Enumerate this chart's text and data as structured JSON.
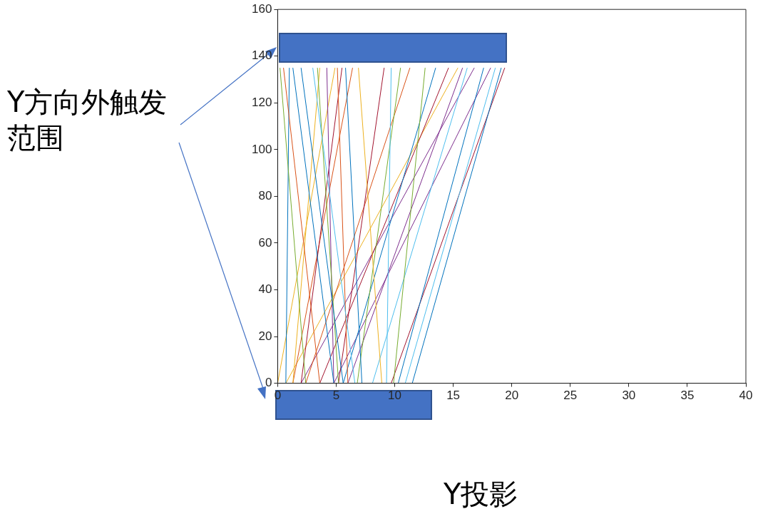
{
  "chart_data": {
    "type": "line",
    "xlim": [
      0,
      40
    ],
    "xticks": [
      0,
      5,
      10,
      15,
      20,
      25,
      30,
      35,
      40
    ],
    "ylim": [
      0,
      160
    ],
    "yticks": [
      0,
      20,
      40,
      60,
      80,
      100,
      120,
      140,
      160
    ],
    "grid": false,
    "legend": false,
    "marker": "none",
    "line_style": "solid",
    "annotations": [
      "Y方向外触发范围",
      "Y投影"
    ],
    "series": [
      {
        "color": "#77ac30",
        "x": [
          2.4,
          0.2
        ],
        "values": [
          0,
          135
        ]
      },
      {
        "color": "#d95319",
        "x": [
          3.6,
          0.5
        ],
        "values": [
          0,
          135
        ]
      },
      {
        "color": "#0072bd",
        "x": [
          0.7,
          1.0
        ],
        "values": [
          0,
          135
        ]
      },
      {
        "color": "#0072bd",
        "x": [
          4.8,
          1.3
        ],
        "values": [
          0,
          135
        ]
      },
      {
        "color": "#0072bd",
        "x": [
          5.6,
          2.0
        ],
        "values": [
          0,
          135
        ]
      },
      {
        "color": "#4dbeee",
        "x": [
          6.6,
          3.0
        ],
        "values": [
          0,
          135
        ]
      },
      {
        "color": "#77ac30",
        "x": [
          5.2,
          3.4
        ],
        "values": [
          0,
          135
        ]
      },
      {
        "color": "#edb120",
        "x": [
          1.3,
          3.6
        ],
        "values": [
          0,
          135
        ]
      },
      {
        "color": "#7e2f8e",
        "x": [
          4.8,
          4.2
        ],
        "values": [
          0,
          135
        ]
      },
      {
        "color": "#edb120",
        "x": [
          0,
          4.9
        ],
        "values": [
          0,
          135
        ]
      },
      {
        "color": "#d95319",
        "x": [
          6.0,
          5.1
        ],
        "values": [
          0,
          135
        ]
      },
      {
        "color": "#a2142f",
        "x": [
          2.0,
          5.5
        ],
        "values": [
          0,
          135
        ]
      },
      {
        "color": "#0072bd",
        "x": [
          7.2,
          5.8
        ],
        "values": [
          0,
          135
        ]
      },
      {
        "color": "#d95319",
        "x": [
          1.3,
          6.4
        ],
        "values": [
          0,
          135
        ]
      },
      {
        "color": "#edb120",
        "x": [
          8.9,
          6.9
        ],
        "values": [
          0,
          135
        ]
      },
      {
        "color": "#a2142f",
        "x": [
          5.2,
          9.1
        ],
        "values": [
          0,
          135
        ]
      },
      {
        "color": "#4dbeee",
        "x": [
          9.3,
          9.7
        ],
        "values": [
          0,
          135
        ]
      },
      {
        "color": "#77ac30",
        "x": [
          6.8,
          10.5
        ],
        "values": [
          0,
          135
        ]
      },
      {
        "color": "#d95319",
        "x": [
          2.4,
          11.3
        ],
        "values": [
          0,
          135
        ]
      },
      {
        "color": "#77ac30",
        "x": [
          9.9,
          12.6
        ],
        "values": [
          0,
          135
        ]
      },
      {
        "color": "#0072bd",
        "x": [
          5.6,
          13.5
        ],
        "values": [
          0,
          135
        ]
      },
      {
        "color": "#a2142f",
        "x": [
          3.6,
          14.6
        ],
        "values": [
          0,
          135
        ]
      },
      {
        "color": "#edb120",
        "x": [
          0.7,
          15.4
        ],
        "values": [
          0,
          135
        ]
      },
      {
        "color": "#7e2f8e",
        "x": [
          6.0,
          15.8
        ],
        "values": [
          0,
          135
        ]
      },
      {
        "color": "#4dbeee",
        "x": [
          8.1,
          16.2
        ],
        "values": [
          0,
          135
        ]
      },
      {
        "color": "#7e2f8e",
        "x": [
          2.0,
          16.8
        ],
        "values": [
          0,
          135
        ]
      },
      {
        "color": "#0072bd",
        "x": [
          10.3,
          17.6
        ],
        "values": [
          0,
          135
        ]
      },
      {
        "color": "#7e2f8e",
        "x": [
          4.8,
          18.2
        ],
        "values": [
          0,
          135
        ]
      },
      {
        "color": "#4dbeee",
        "x": [
          10.9,
          18.6
        ],
        "values": [
          0,
          135
        ]
      },
      {
        "color": "#0072bd",
        "x": [
          11.5,
          19.1
        ],
        "values": [
          0,
          135
        ]
      },
      {
        "color": "#a2142f",
        "x": [
          9.7,
          19.4
        ],
        "values": [
          0,
          135
        ]
      }
    ]
  }
}
